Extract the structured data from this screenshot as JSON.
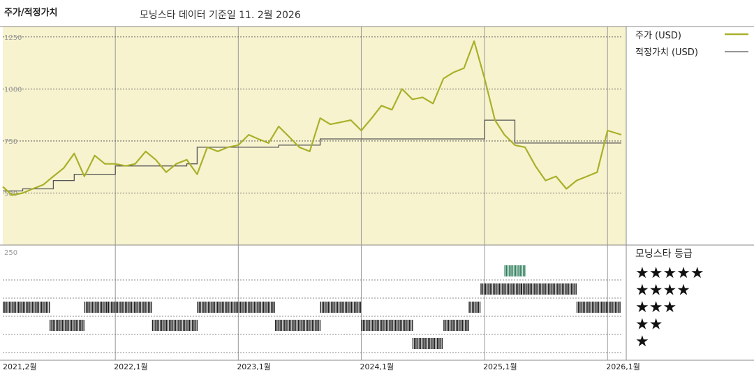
{
  "header": {
    "title": "주가/적정가치",
    "subtitle": "모닝스타 데이터 기준일 11. 2월 2026"
  },
  "legend": {
    "price_label": "주가 (USD)",
    "fair_label": "적정가치 (USD)",
    "rating_title": "모닝스타 등급"
  },
  "colors": {
    "background": "#F7F3CF",
    "price": "#A9B029",
    "fair_value": "#555555",
    "rating_bar": "#222222",
    "rating_bar_5": "#2E7D5B",
    "grid": "#bbbbbb"
  },
  "chart_data": {
    "type": "line",
    "title": "주가/적정가치",
    "subtitle": "모닝스타 데이터 기준일 11. 2월 2026",
    "ylim": [
      250,
      1300
    ],
    "yticks": [
      "250",
      "500",
      "750",
      "1000",
      "1250"
    ],
    "xlim": [
      "2021-02-01",
      "2026-02-11"
    ],
    "x_tick_labels": [
      {
        "date": "2021-02-01",
        "label": "2021,2월"
      },
      {
        "date": "2022-01-01",
        "label": "2022,1월"
      },
      {
        "date": "2023-01-01",
        "label": "2023,1월"
      },
      {
        "date": "2024-01-01",
        "label": "2024,1월"
      },
      {
        "date": "2025-01-01",
        "label": "2025,1월"
      },
      {
        "date": "2026-01-01",
        "label": "2026,1월"
      }
    ],
    "series": [
      {
        "name": "주가 (USD)",
        "x": [
          "2021-02-01",
          "2021-03-01",
          "2021-04-01",
          "2021-05-01",
          "2021-06-01",
          "2021-07-01",
          "2021-08-01",
          "2021-09-01",
          "2021-10-01",
          "2021-11-01",
          "2021-12-01",
          "2022-01-01",
          "2022-02-01",
          "2022-03-01",
          "2022-04-01",
          "2022-05-01",
          "2022-06-01",
          "2022-07-01",
          "2022-08-01",
          "2022-09-01",
          "2022-10-01",
          "2022-11-01",
          "2022-12-01",
          "2023-01-01",
          "2023-02-01",
          "2023-03-01",
          "2023-04-01",
          "2023-05-01",
          "2023-06-01",
          "2023-07-01",
          "2023-08-01",
          "2023-09-01",
          "2023-10-01",
          "2023-11-01",
          "2023-12-01",
          "2024-01-01",
          "2024-02-01",
          "2024-03-01",
          "2024-04-01",
          "2024-05-01",
          "2024-06-01",
          "2024-07-01",
          "2024-08-01",
          "2024-09-01",
          "2024-10-01",
          "2024-11-01",
          "2024-12-01",
          "2025-01-01",
          "2025-02-01",
          "2025-03-01",
          "2025-04-01",
          "2025-05-01",
          "2025-06-01",
          "2025-07-01",
          "2025-08-01",
          "2025-09-01",
          "2025-10-01",
          "2025-11-01",
          "2025-12-01",
          "2026-01-01",
          "2026-02-11"
        ],
        "y": [
          530,
          490,
          500,
          520,
          540,
          580,
          620,
          690,
          580,
          680,
          640,
          640,
          630,
          640,
          700,
          660,
          600,
          640,
          660,
          590,
          720,
          700,
          720,
          730,
          780,
          760,
          740,
          820,
          770,
          720,
          700,
          860,
          830,
          840,
          850,
          800,
          860,
          920,
          900,
          1000,
          950,
          960,
          930,
          1050,
          1080,
          1100,
          1230,
          1050,
          850,
          780,
          730,
          720,
          630,
          560,
          580,
          520,
          560,
          580,
          600,
          800,
          780
        ]
      },
      {
        "name": "적정가치 (USD)",
        "x": [
          "2021-02-01",
          "2021-04-01",
          "2021-04-01",
          "2021-07-01",
          "2021-07-01",
          "2021-09-01",
          "2021-09-01",
          "2022-01-01",
          "2022-01-01",
          "2022-08-01",
          "2022-08-01",
          "2022-09-01",
          "2022-09-01",
          "2023-05-01",
          "2023-05-01",
          "2023-09-01",
          "2023-09-01",
          "2024-06-01",
          "2024-06-01",
          "2024-12-01",
          "2024-12-01",
          "2025-01-01",
          "2025-01-01",
          "2025-04-01",
          "2025-04-01",
          "2026-02-11"
        ],
        "y": [
          510,
          510,
          520,
          520,
          560,
          560,
          590,
          590,
          630,
          630,
          640,
          640,
          720,
          720,
          730,
          730,
          760,
          760,
          760,
          760,
          760,
          760,
          850,
          850,
          740,
          740
        ]
      }
    ],
    "ratings": {
      "levels": [
        "★★★★★",
        "★★★★",
        "★★★",
        "★★",
        "★"
      ],
      "history": [
        {
          "from": "2021-02-01",
          "to": "2021-06-20",
          "stars": 3
        },
        {
          "from": "2021-06-20",
          "to": "2021-10-01",
          "stars": 2
        },
        {
          "from": "2021-10-01",
          "to": "2021-12-10",
          "stars": 3
        },
        {
          "from": "2021-12-10",
          "to": "2022-04-20",
          "stars": 3
        },
        {
          "from": "2022-04-20",
          "to": "2022-09-01",
          "stars": 2
        },
        {
          "from": "2022-09-01",
          "to": "2023-04-20",
          "stars": 3
        },
        {
          "from": "2023-04-20",
          "to": "2023-09-01",
          "stars": 2
        },
        {
          "from": "2023-09-01",
          "to": "2024-01-01",
          "stars": 3
        },
        {
          "from": "2024-01-01",
          "to": "2024-06-01",
          "stars": 2
        },
        {
          "from": "2024-06-01",
          "to": "2024-09-01",
          "stars": 1
        },
        {
          "from": "2024-09-01",
          "to": "2024-11-15",
          "stars": 2
        },
        {
          "from": "2024-11-15",
          "to": "2024-12-20",
          "stars": 3
        },
        {
          "from": "2024-12-20",
          "to": "2025-04-20",
          "stars": 4
        },
        {
          "from": "2025-04-20",
          "to": "2025-05-10",
          "stars": 4
        },
        {
          "from": "2025-03-01",
          "to": "2025-05-01",
          "stars": 5
        },
        {
          "from": "2025-05-10",
          "to": "2025-10-01",
          "stars": 4
        },
        {
          "from": "2025-10-01",
          "to": "2026-02-11",
          "stars": 3
        }
      ]
    }
  }
}
